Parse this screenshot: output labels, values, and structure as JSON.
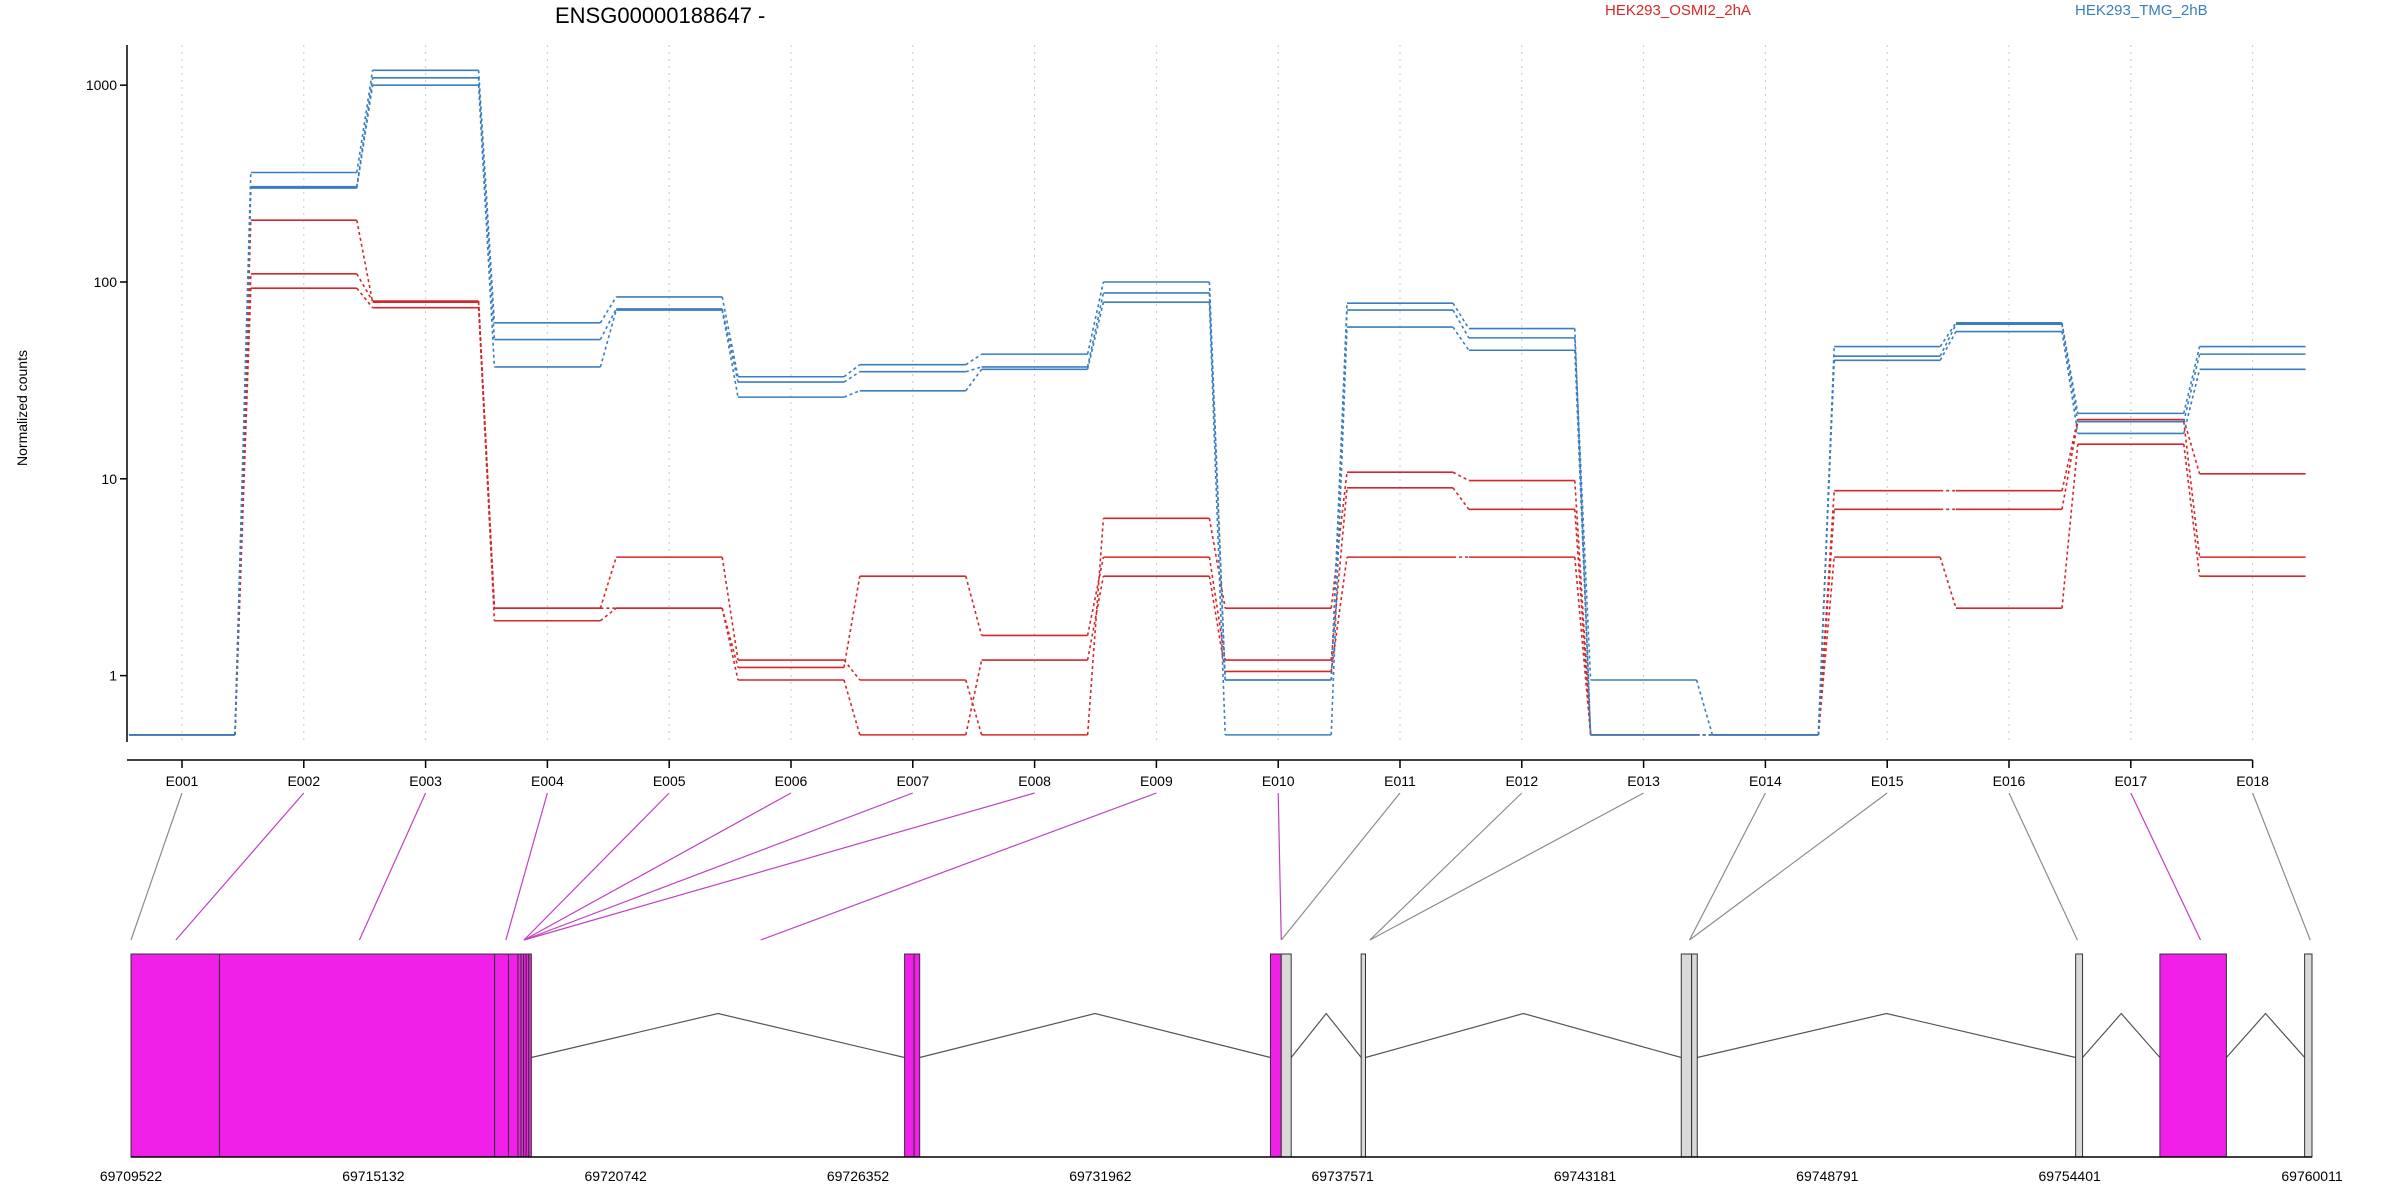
{
  "chart_data": {
    "type": "line",
    "title": "ENSG00000188647 -",
    "ylabel": "Normalized counts",
    "yscale": "log",
    "ylim": [
      0.46,
      1600
    ],
    "yticks": [
      1,
      10,
      100,
      1000
    ],
    "yticklabels": [
      "1",
      "10",
      "100",
      "1000"
    ],
    "grid": "vertical dotted at exon ticks",
    "legend_position": "top",
    "categories": [
      "E001",
      "E002",
      "E003",
      "E004",
      "E005",
      "E006",
      "E007",
      "E008",
      "E009",
      "E010",
      "E011",
      "E012",
      "E013",
      "E014",
      "E015",
      "E016",
      "E017",
      "E018"
    ],
    "series": [
      {
        "name": "HEK293_OSMI2_2hA",
        "color": "#d62728",
        "values": [
          0.5,
          206,
          79,
          2.2,
          4,
          1.2,
          0.95,
          0.5,
          6.3,
          2.2,
          10.8,
          9.8,
          0.5,
          0.5,
          8.7,
          8.7,
          20,
          10.6
        ]
      },
      {
        "name": "",
        "color": "#d62728",
        "values": [
          0.5,
          110,
          80,
          2.2,
          2.2,
          1.1,
          3.2,
          1.6,
          4,
          1.2,
          9,
          7,
          0.5,
          0.5,
          7,
          7,
          19.5,
          4
        ]
      },
      {
        "name": "",
        "color": "#d62728",
        "values": [
          0.5,
          93,
          74,
          1.9,
          2.2,
          0.95,
          0.5,
          1.2,
          3.2,
          1.05,
          4,
          4,
          0.5,
          0.5,
          4,
          2.2,
          15,
          3.2
        ]
      },
      {
        "name": "HEK293_TMG_2hB",
        "color": "#3a7ebf",
        "values": [
          0.5,
          360,
          1190,
          62,
          84,
          33,
          38,
          43,
          100,
          0.95,
          78,
          58,
          0.5,
          0.5,
          47,
          62,
          21.5,
          47
        ]
      },
      {
        "name": "",
        "color": "#3a7ebf",
        "values": [
          0.5,
          305,
          1090,
          51,
          73,
          31,
          35,
          37,
          88,
          0.95,
          72,
          52,
          0.95,
          0.5,
          42,
          61,
          19.5,
          43
        ]
      },
      {
        "name": "",
        "color": "#3a7ebf",
        "values": [
          0.5,
          300,
          1000,
          37,
          72,
          26,
          28,
          36,
          79,
          0.5,
          59,
          45,
          0.5,
          0.5,
          40,
          56,
          17,
          36
        ]
      }
    ],
    "gene_model": {
      "coordinate_labels": [
        "69709522",
        "69715132",
        "69720742",
        "69726352",
        "69731962",
        "69737571",
        "69743181",
        "69748791",
        "69754401",
        "69760011"
      ],
      "coordinate_ticks": [
        69709522,
        69715132,
        69720742,
        69726352,
        69731962,
        69737571,
        69743181,
        69748791,
        69754401,
        69760011
      ],
      "range": [
        69709522,
        69760011
      ],
      "highlight_color": "#f020e8",
      "exons": [
        {
          "start": 69709522,
          "end": 69711570,
          "highlighted": true
        },
        {
          "start": 69711570,
          "end": 69717940,
          "highlighted": true
        },
        {
          "start": 69717940,
          "end": 69718260,
          "highlighted": true
        },
        {
          "start": 69718260,
          "end": 69718480,
          "highlighted": true
        },
        {
          "start": 69718480,
          "end": 69718550,
          "highlighted": true
        },
        {
          "start": 69718550,
          "end": 69718610,
          "highlighted": true
        },
        {
          "start": 69718610,
          "end": 69718670,
          "highlighted": true
        },
        {
          "start": 69718670,
          "end": 69718730,
          "highlighted": true
        },
        {
          "start": 69718730,
          "end": 69718790,
          "highlighted": true
        },
        {
          "start": 69727430,
          "end": 69727650,
          "highlighted": true
        },
        {
          "start": 69727650,
          "end": 69727780,
          "highlighted": true
        },
        {
          "start": 69735900,
          "end": 69736150,
          "highlighted": true
        },
        {
          "start": 69736150,
          "end": 69736380,
          "highlighted": false
        },
        {
          "start": 69738000,
          "end": 69738100,
          "highlighted": false
        },
        {
          "start": 69745410,
          "end": 69745650,
          "highlighted": false
        },
        {
          "start": 69745650,
          "end": 69745780,
          "highlighted": false
        },
        {
          "start": 69754540,
          "end": 69754700,
          "highlighted": false
        },
        {
          "start": 69756490,
          "end": 69758030,
          "highlighted": true
        },
        {
          "start": 69759840,
          "end": 69760011,
          "highlighted": false
        }
      ],
      "introns": [
        [
          69718790,
          69727430
        ],
        [
          69727780,
          69735900
        ],
        [
          69736380,
          69738000
        ],
        [
          69738100,
          69745410
        ],
        [
          69745780,
          69754540
        ],
        [
          69754700,
          69756490
        ],
        [
          69758030,
          69759840
        ]
      ],
      "mapping": [
        {
          "bin": "E001",
          "start": 69709522,
          "end": 69709522,
          "highlighted": false
        },
        {
          "bin": "E002",
          "start": 69710560,
          "end": 69710560,
          "highlighted": true
        },
        {
          "bin": "E003",
          "start": 69714810,
          "end": 69714810,
          "highlighted": true
        },
        {
          "bin": "E004",
          "start": 69718200,
          "end": 69718200,
          "highlighted": true
        },
        {
          "bin": "E005",
          "start": 69718620,
          "end": 69718620,
          "highlighted": true
        },
        {
          "bin": "E006",
          "start": 69718620,
          "end": 69718620,
          "highlighted": true
        },
        {
          "bin": "E007",
          "start": 69718620,
          "end": 69718620,
          "highlighted": true
        },
        {
          "bin": "E008",
          "start": 69718620,
          "end": 69718620,
          "highlighted": true
        },
        {
          "bin": "E009",
          "start": 69724100,
          "end": 69724100,
          "highlighted": true
        },
        {
          "bin": "E010",
          "start": 69736150,
          "end": 69736150,
          "highlighted": true
        },
        {
          "bin": "E011",
          "start": 69736150,
          "end": 69736150,
          "highlighted": false
        },
        {
          "bin": "E012",
          "start": 69738200,
          "end": 69738200,
          "highlighted": false
        },
        {
          "bin": "E013",
          "start": 69738200,
          "end": 69738200,
          "highlighted": false
        },
        {
          "bin": "E014",
          "start": 69745600,
          "end": 69745600,
          "highlighted": false
        },
        {
          "bin": "E015",
          "start": 69745600,
          "end": 69745600,
          "highlighted": false
        },
        {
          "bin": "E016",
          "start": 69754580,
          "end": 69754580,
          "highlighted": false
        },
        {
          "bin": "E017",
          "start": 69757430,
          "end": 69757430,
          "highlighted": true
        },
        {
          "bin": "E018",
          "start": 69759970,
          "end": 69759970,
          "highlighted": false
        }
      ]
    }
  }
}
